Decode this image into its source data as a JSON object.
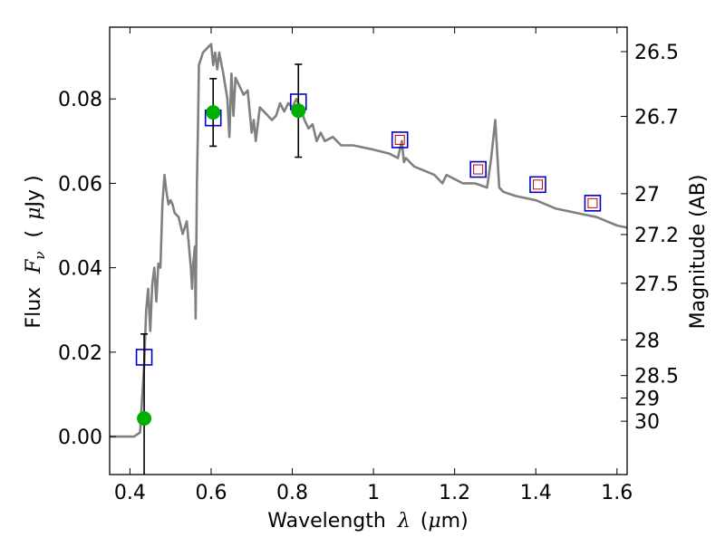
{
  "chart_data": {
    "type": "line",
    "xlabel": {
      "pre": "Wavelength",
      "sym": "λ",
      "open": "(",
      "unit_sym": "μ",
      "unit": "m)"
    },
    "ylabel": {
      "pre": "Flux",
      "sym": "F",
      "sub": "ν",
      "open": "(",
      "unit_sym": "μ",
      "unit": "Jy )"
    },
    "y2label": "Magnitude (AB)",
    "xlim": [
      0.35,
      1.625
    ],
    "ylim": [
      -0.009,
      0.097
    ],
    "grid": true,
    "x_ticks": [
      0.4,
      0.6,
      0.8,
      1.0,
      1.2,
      1.4,
      1.6
    ],
    "x_tick_labels": [
      "0.4",
      "0.6",
      "0.8",
      "1",
      "1.2",
      "1.4",
      "1.6"
    ],
    "y_ticks": [
      0.0,
      0.02,
      0.04,
      0.06,
      0.08
    ],
    "y_tick_labels": [
      "0.00",
      "0.02",
      "0.04",
      "0.06",
      "0.08"
    ],
    "mag_ticks": [
      26.5,
      26.7,
      27,
      27.2,
      27.5,
      28,
      28.5,
      29,
      30
    ],
    "mag_tick_labels": [
      "26.5",
      "26.7",
      "27",
      "27.2",
      "27.5",
      "28",
      "28.5",
      "29",
      "30"
    ],
    "zero_line": 0.0,
    "colors": {
      "sed": "#808080",
      "observed": "#00b000",
      "model_phot": "#0000cc",
      "model_inner": "#cc0000",
      "error": "#000000",
      "zero_line": "#555555"
    },
    "sed_model": {
      "x": [
        0.35,
        0.41,
        0.425,
        0.43,
        0.435,
        0.44,
        0.445,
        0.45,
        0.455,
        0.46,
        0.465,
        0.47,
        0.475,
        0.48,
        0.485,
        0.49,
        0.495,
        0.5,
        0.505,
        0.51,
        0.52,
        0.53,
        0.54,
        0.55,
        0.553,
        0.556,
        0.56,
        0.562,
        0.565,
        0.568,
        0.57,
        0.58,
        0.59,
        0.6,
        0.605,
        0.61,
        0.615,
        0.62,
        0.63,
        0.64,
        0.645,
        0.65,
        0.655,
        0.66,
        0.67,
        0.68,
        0.69,
        0.7,
        0.705,
        0.71,
        0.72,
        0.73,
        0.74,
        0.75,
        0.76,
        0.77,
        0.78,
        0.79,
        0.8,
        0.81,
        0.82,
        0.83,
        0.84,
        0.85,
        0.86,
        0.87,
        0.88,
        0.9,
        0.92,
        0.95,
        1.0,
        1.04,
        1.06,
        1.07,
        1.075,
        1.08,
        1.1,
        1.15,
        1.17,
        1.18,
        1.2,
        1.22,
        1.25,
        1.28,
        1.29,
        1.3,
        1.31,
        1.32,
        1.35,
        1.4,
        1.45,
        1.5,
        1.55,
        1.6,
        1.625
      ],
      "y": [
        0.0,
        0.0,
        0.001,
        0.009,
        0.017,
        0.03,
        0.035,
        0.025,
        0.036,
        0.04,
        0.032,
        0.041,
        0.04,
        0.055,
        0.062,
        0.058,
        0.055,
        0.056,
        0.055,
        0.053,
        0.052,
        0.048,
        0.051,
        0.04,
        0.035,
        0.041,
        0.045,
        0.028,
        0.06,
        0.075,
        0.088,
        0.091,
        0.092,
        0.093,
        0.088,
        0.091,
        0.087,
        0.091,
        0.086,
        0.08,
        0.071,
        0.086,
        0.076,
        0.085,
        0.083,
        0.081,
        0.082,
        0.072,
        0.075,
        0.07,
        0.078,
        0.077,
        0.076,
        0.075,
        0.076,
        0.079,
        0.077,
        0.079,
        0.078,
        0.08,
        0.078,
        0.075,
        0.073,
        0.074,
        0.07,
        0.072,
        0.07,
        0.071,
        0.069,
        0.069,
        0.068,
        0.067,
        0.066,
        0.07,
        0.065,
        0.066,
        0.064,
        0.062,
        0.06,
        0.062,
        0.061,
        0.06,
        0.06,
        0.059,
        0.066,
        0.075,
        0.059,
        0.058,
        0.057,
        0.056,
        0.054,
        0.053,
        0.052,
        0.05,
        0.0495
      ]
    },
    "observed": [
      {
        "x": 0.435,
        "y": 0.0043,
        "err": 0.02
      },
      {
        "x": 0.605,
        "y": 0.0768,
        "err": 0.008
      },
      {
        "x": 0.815,
        "y": 0.0772,
        "err": 0.011
      }
    ],
    "model_phot": [
      {
        "x": 0.435,
        "y": 0.0188,
        "inner": false
      },
      {
        "x": 0.605,
        "y": 0.0755,
        "inner": false
      },
      {
        "x": 0.815,
        "y": 0.0793,
        "inner": false
      },
      {
        "x": 1.065,
        "y": 0.0703,
        "inner": true
      },
      {
        "x": 1.258,
        "y": 0.0633,
        "inner": true
      },
      {
        "x": 1.405,
        "y": 0.0597,
        "inner": true
      },
      {
        "x": 1.54,
        "y": 0.0553,
        "inner": true
      }
    ]
  }
}
